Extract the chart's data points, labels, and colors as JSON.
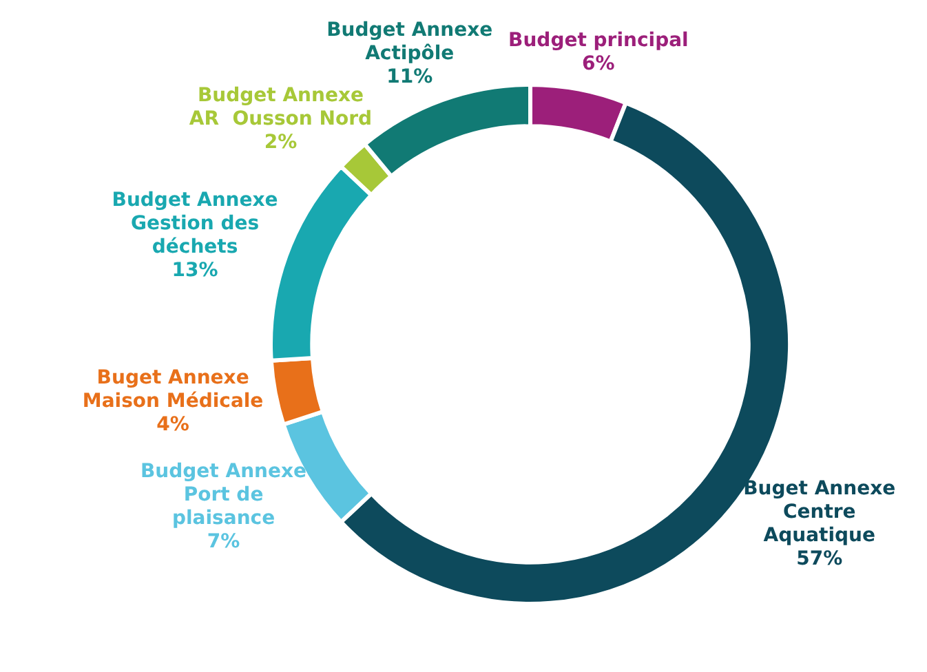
{
  "chart_data": {
    "type": "donut",
    "categories": [
      "Budget principal",
      "Buget Annexe\nCentre\nAquatique",
      "Budget Annexe\nPort de\nplaisance",
      "Buget Annexe\nMaison Médicale",
      "Budget Annexe\nGestion des\ndéchets",
      "Budget Annexe\nAR  Ousson Nord",
      "Budget Annexe\nActipôle"
    ],
    "values": [
      6,
      57,
      7,
      4,
      13,
      2,
      11
    ],
    "value_labels": [
      "6%",
      "57%",
      "7%",
      "4%",
      "13%",
      "2%",
      "11%"
    ],
    "colors": [
      "#9c1f7a",
      "#0d4a5c",
      "#5bc4e0",
      "#e8701a",
      "#19a8b0",
      "#a7c838",
      "#117a74"
    ],
    "legend": false
  }
}
